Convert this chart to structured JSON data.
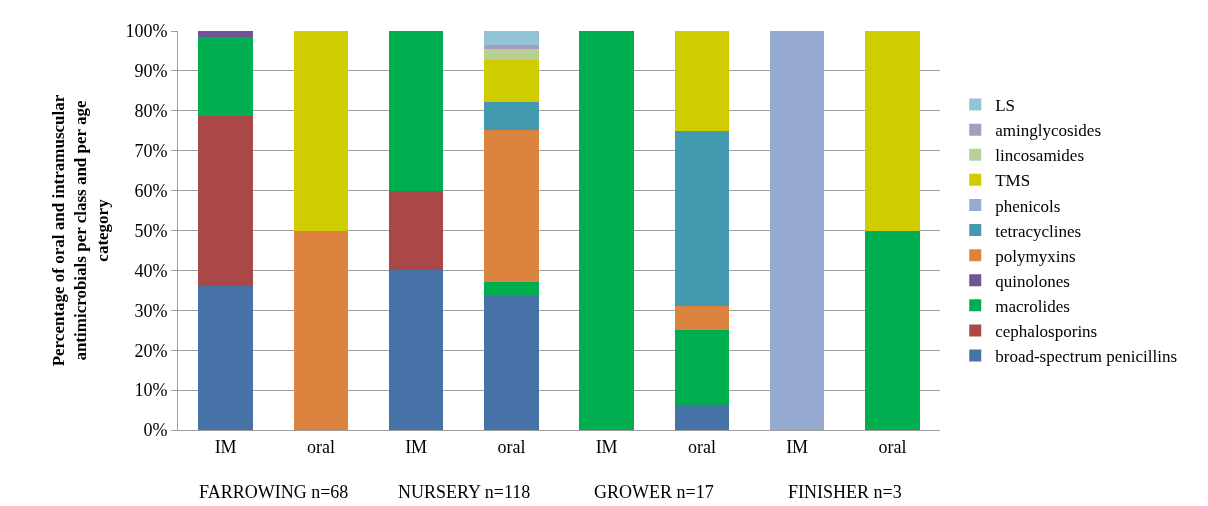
{
  "chart_data": {
    "type": "bar",
    "stacked": true,
    "ylabel": "Percentage of oral and intramuscular antimicrobials per class and per age category",
    "categories": [
      "IM",
      "oral",
      "IM",
      "oral",
      "IM",
      "oral",
      "IM",
      "oral"
    ],
    "annotations": [
      "FARROWING n=68",
      "NURSERY n=118",
      "GROWER n=17",
      "FINISHER n=3"
    ],
    "ylim": [
      0,
      100
    ],
    "yticks": [
      {
        "value": 0,
        "label": "0%"
      },
      {
        "value": 10,
        "label": "10%"
      },
      {
        "value": 20,
        "label": "20%"
      },
      {
        "value": 30,
        "label": "30%"
      },
      {
        "value": 40,
        "label": "40%"
      },
      {
        "value": 50,
        "label": "50%"
      },
      {
        "value": 60,
        "label": "60%"
      },
      {
        "value": 70,
        "label": "70%"
      },
      {
        "value": 80,
        "label": "80%"
      },
      {
        "value": 90,
        "label": "90%"
      },
      {
        "value": 100,
        "label": "100%"
      }
    ],
    "grid": "y",
    "legend": "right",
    "series": [
      {
        "name": "broad-spectrum penicillins",
        "color": "#4672a8",
        "values": [
          36.2,
          0,
          40,
          33.5,
          0,
          6.2,
          0,
          0
        ]
      },
      {
        "name": "cephalosporins",
        "color": "#a94846",
        "values": [
          42.6,
          0,
          20,
          0,
          0,
          0,
          0,
          0
        ]
      },
      {
        "name": "macrolides",
        "color": "#00ae4f",
        "values": [
          19.7,
          0,
          40,
          3.5,
          100,
          18.8,
          0,
          50
        ]
      },
      {
        "name": "quinolones",
        "color": "#6f5496",
        "values": [
          1.5,
          0,
          0,
          0,
          0,
          0,
          0,
          0
        ]
      },
      {
        "name": "polymyxins",
        "color": "#dc843f",
        "values": [
          0,
          50,
          0,
          38.1,
          0,
          6.2,
          0,
          0
        ]
      },
      {
        "name": "tetracyclines",
        "color": "#4399b0",
        "values": [
          0,
          0,
          0,
          7.2,
          0,
          43.8,
          0,
          0
        ]
      },
      {
        "name": "phenicols",
        "color": "#95a9d1",
        "values": [
          0,
          0,
          0,
          0,
          0,
          0,
          100,
          0
        ]
      },
      {
        "name": "TMS",
        "color": "#cfcd00",
        "values": [
          0,
          50,
          0,
          10.5,
          0,
          25.0,
          0,
          50
        ]
      },
      {
        "name": "lincosamides",
        "color": "#b9cf96",
        "values": [
          0,
          0,
          0,
          2.7,
          0,
          0,
          0,
          0
        ]
      },
      {
        "name": "aminglycosides",
        "color": "#a99bbd",
        "values": [
          0,
          0,
          0,
          1.0,
          0,
          0,
          0,
          0
        ]
      },
      {
        "name": "LS",
        "color": "#93c4d6",
        "values": [
          0,
          0,
          0,
          3.5,
          0,
          0,
          0,
          0
        ]
      }
    ]
  }
}
